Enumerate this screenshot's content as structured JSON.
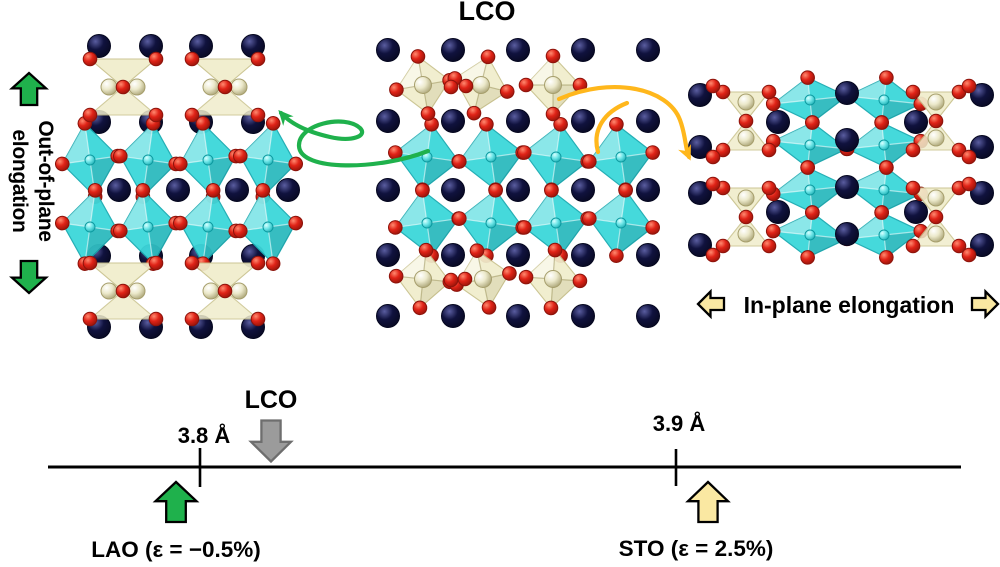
{
  "labels": {
    "title": "LCO",
    "out_of_plane_line1": "Out-of-plane",
    "out_of_plane_line2": "elongation",
    "in_plane": "In-plane elongation",
    "axis_film": "LCO",
    "tick_left": "3.8 Å",
    "tick_right": "3.9 Å",
    "substrate_left": "LAO (ε = −0.5%)",
    "substrate_right": "STO (ε = 2.5%)"
  },
  "colors": {
    "background": "#ffffff",
    "octahedron": "#3cd7da",
    "octahedron_edge": "#1aabb2",
    "tetrahedron": "#f0edcc",
    "tetrahedron_edge": "#c9c28d",
    "atom_navy": "#10123e",
    "atom_red": "#e02317",
    "atom_cream": "#ece9cb",
    "atom_cyan": "#6fe6e8",
    "green": "#1fb14c",
    "orange": "#ffb71c",
    "pale_yellow": "#fae8a2",
    "gray": "#9b9b9b",
    "axis_line": "#000000"
  },
  "strain_axis": {
    "type": "number-line",
    "unit": "Å",
    "ticks": [
      {
        "label": "3.8 Å",
        "value": 3.8
      },
      {
        "label": "3.9 Å",
        "value": 3.9
      }
    ],
    "markers": [
      {
        "name": "LCO",
        "arrow": "down",
        "color_key": "gray"
      },
      {
        "name": "LAO",
        "strain": "−0.5%",
        "arrow": "up",
        "color_key": "green"
      },
      {
        "name": "STO",
        "strain": "2.5%",
        "arrow": "up",
        "color_key": "pale_yellow"
      }
    ]
  }
}
